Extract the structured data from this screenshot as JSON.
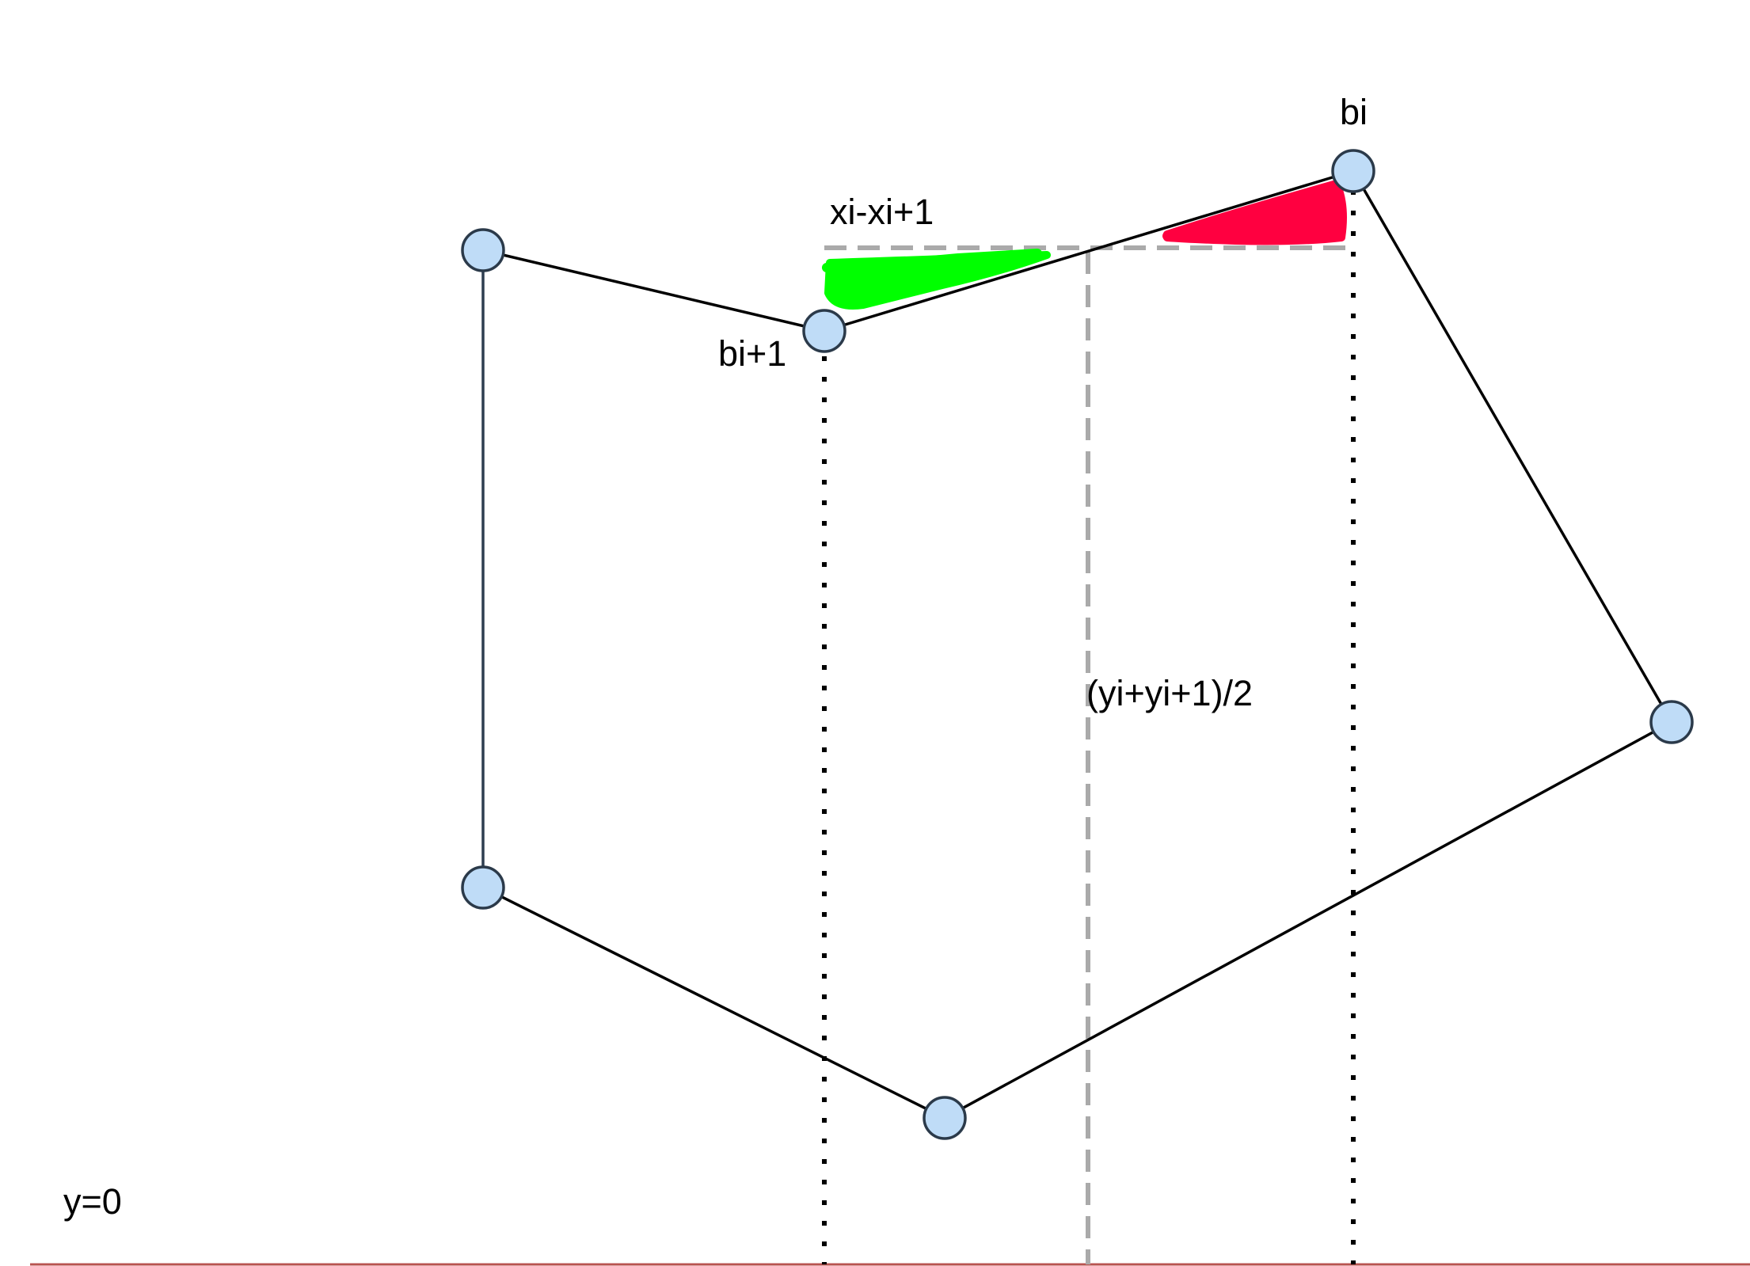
{
  "labels": {
    "vertex_bi": "bi",
    "vertex_bi_plus_1": "bi+1",
    "width_label": "xi-xi+1",
    "mean_height_label": "(yi+yi+1)/2",
    "baseline_label": "y=0"
  },
  "colors": {
    "vertex_fill": "#bfdcf7",
    "vertex_stroke": "#2b3a4a",
    "polygon_edge": "#000000",
    "left_edge": "#2e3e50",
    "projection_dotted": "#000000",
    "mean_height_dashed": "#aaaaaa",
    "baseline": "#b85450",
    "green_highlight": "#00ff00",
    "red_highlight": "#ff0040"
  }
}
